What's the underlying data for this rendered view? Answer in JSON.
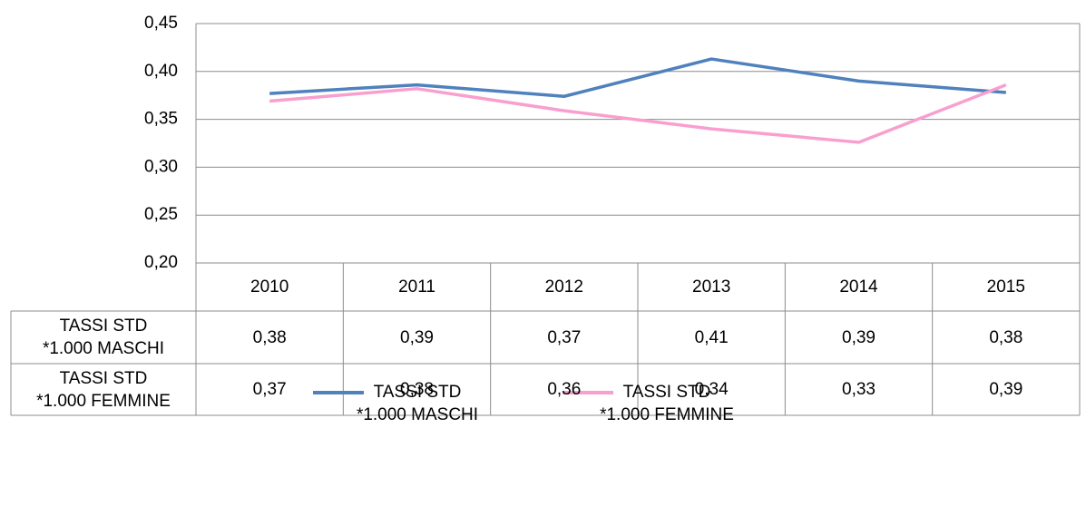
{
  "chart_data": {
    "type": "line",
    "categories": [
      "2010",
      "2011",
      "2012",
      "2013",
      "2014",
      "2015"
    ],
    "series": [
      {
        "name": "TASSI STD\n*1.000 MASCHI",
        "color": "#4f81bd",
        "values": [
          0.377,
          0.386,
          0.374,
          0.413,
          0.39,
          0.378
        ],
        "value_labels": [
          "0,38",
          "0,39",
          "0,37",
          "0,41",
          "0,39",
          "0,38"
        ]
      },
      {
        "name": "TASSI STD\n*1.000 FEMMINE",
        "color": "#f99fcf",
        "values": [
          0.369,
          0.382,
          0.359,
          0.34,
          0.326,
          0.386
        ],
        "value_labels": [
          "0,37",
          "0,38",
          "0,36",
          "0,34",
          "0,33",
          "0,39"
        ]
      }
    ],
    "ylim": [
      0.2,
      0.45
    ],
    "yticks": [
      {
        "value": 0.2,
        "label": "0,20"
      },
      {
        "value": 0.25,
        "label": "0,25"
      },
      {
        "value": 0.3,
        "label": "0,30"
      },
      {
        "value": 0.35,
        "label": "0,35"
      },
      {
        "value": 0.4,
        "label": "0,40"
      },
      {
        "value": 0.45,
        "label": "0,45"
      }
    ],
    "grid": true,
    "legend": "bottom"
  }
}
